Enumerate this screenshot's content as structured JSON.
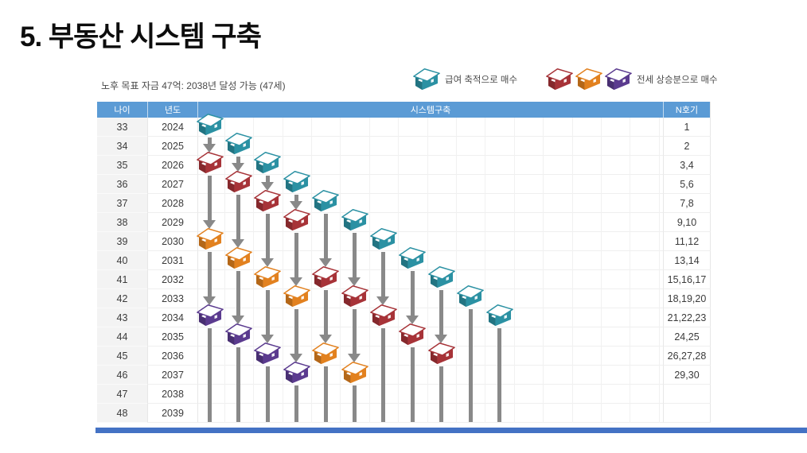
{
  "title": "5. 부동산 시스템 구축",
  "subtitle": "노후 목표 자금 47억: 2038년 달성 가능 (47세)",
  "legend": {
    "salary_label": "급여 축적으로 매수",
    "salary_color": "teal",
    "jeonse_label": "전세 상승분으로 매수",
    "jeonse_colors": [
      "red",
      "orange",
      "purple"
    ]
  },
  "colors": {
    "teal": "#2b91a3",
    "red": "#a73338",
    "orange": "#e2811f",
    "purple": "#5b3b8f",
    "header_blue": "#5b9bd5",
    "arrow_gray": "#898989",
    "bottom_bar": "#4472c4"
  },
  "table": {
    "headers": [
      "나이",
      "년도",
      "시스템구축",
      "N호기"
    ],
    "rows": [
      {
        "age": "33",
        "year": "2024",
        "units": "1"
      },
      {
        "age": "34",
        "year": "2025",
        "units": "2"
      },
      {
        "age": "35",
        "year": "2026",
        "units": "3,4"
      },
      {
        "age": "36",
        "year": "2027",
        "units": "5,6"
      },
      {
        "age": "37",
        "year": "2028",
        "units": "7,8"
      },
      {
        "age": "38",
        "year": "2029",
        "units": "9,10"
      },
      {
        "age": "39",
        "year": "2030",
        "units": "11,12"
      },
      {
        "age": "40",
        "year": "2031",
        "units": "13,14"
      },
      {
        "age": "41",
        "year": "2032",
        "units": "15,16,17"
      },
      {
        "age": "42",
        "year": "2033",
        "units": "18,19,20"
      },
      {
        "age": "43",
        "year": "2034",
        "units": "21,22,23"
      },
      {
        "age": "44",
        "year": "2035",
        "units": "24,25"
      },
      {
        "age": "45",
        "year": "2036",
        "units": "26,27,28"
      },
      {
        "age": "46",
        "year": "2037",
        "units": "29,30"
      },
      {
        "age": "47",
        "year": "2038",
        "units": ""
      },
      {
        "age": "48",
        "year": "2039",
        "units": ""
      }
    ]
  },
  "diagram": {
    "start_year": 2024,
    "end_year": 2039,
    "columns": [
      {
        "col": 1,
        "houses": [
          {
            "year": 2024,
            "color": "teal"
          },
          {
            "year": 2026,
            "color": "red"
          },
          {
            "year": 2030,
            "color": "orange"
          },
          {
            "year": 2034,
            "color": "purple"
          }
        ]
      },
      {
        "col": 2,
        "houses": [
          {
            "year": 2025,
            "color": "teal"
          },
          {
            "year": 2027,
            "color": "red"
          },
          {
            "year": 2031,
            "color": "orange"
          },
          {
            "year": 2035,
            "color": "purple"
          }
        ]
      },
      {
        "col": 3,
        "houses": [
          {
            "year": 2026,
            "color": "teal"
          },
          {
            "year": 2028,
            "color": "red"
          },
          {
            "year": 2032,
            "color": "orange"
          },
          {
            "year": 2036,
            "color": "purple"
          }
        ]
      },
      {
        "col": 4,
        "houses": [
          {
            "year": 2027,
            "color": "teal"
          },
          {
            "year": 2029,
            "color": "red"
          },
          {
            "year": 2033,
            "color": "orange"
          },
          {
            "year": 2037,
            "color": "purple"
          }
        ]
      },
      {
        "col": 5,
        "houses": [
          {
            "year": 2028,
            "color": "teal"
          },
          {
            "year": 2032,
            "color": "red"
          },
          {
            "year": 2036,
            "color": "orange"
          }
        ]
      },
      {
        "col": 6,
        "houses": [
          {
            "year": 2029,
            "color": "teal"
          },
          {
            "year": 2033,
            "color": "red"
          },
          {
            "year": 2037,
            "color": "orange"
          }
        ]
      },
      {
        "col": 7,
        "houses": [
          {
            "year": 2030,
            "color": "teal"
          },
          {
            "year": 2034,
            "color": "red"
          }
        ]
      },
      {
        "col": 8,
        "houses": [
          {
            "year": 2031,
            "color": "teal"
          },
          {
            "year": 2035,
            "color": "red"
          }
        ]
      },
      {
        "col": 9,
        "houses": [
          {
            "year": 2032,
            "color": "teal"
          },
          {
            "year": 2036,
            "color": "red"
          }
        ]
      },
      {
        "col": 10,
        "houses": [
          {
            "year": 2033,
            "color": "teal"
          }
        ]
      },
      {
        "col": 11,
        "houses": [
          {
            "year": 2034,
            "color": "teal"
          }
        ]
      }
    ]
  }
}
